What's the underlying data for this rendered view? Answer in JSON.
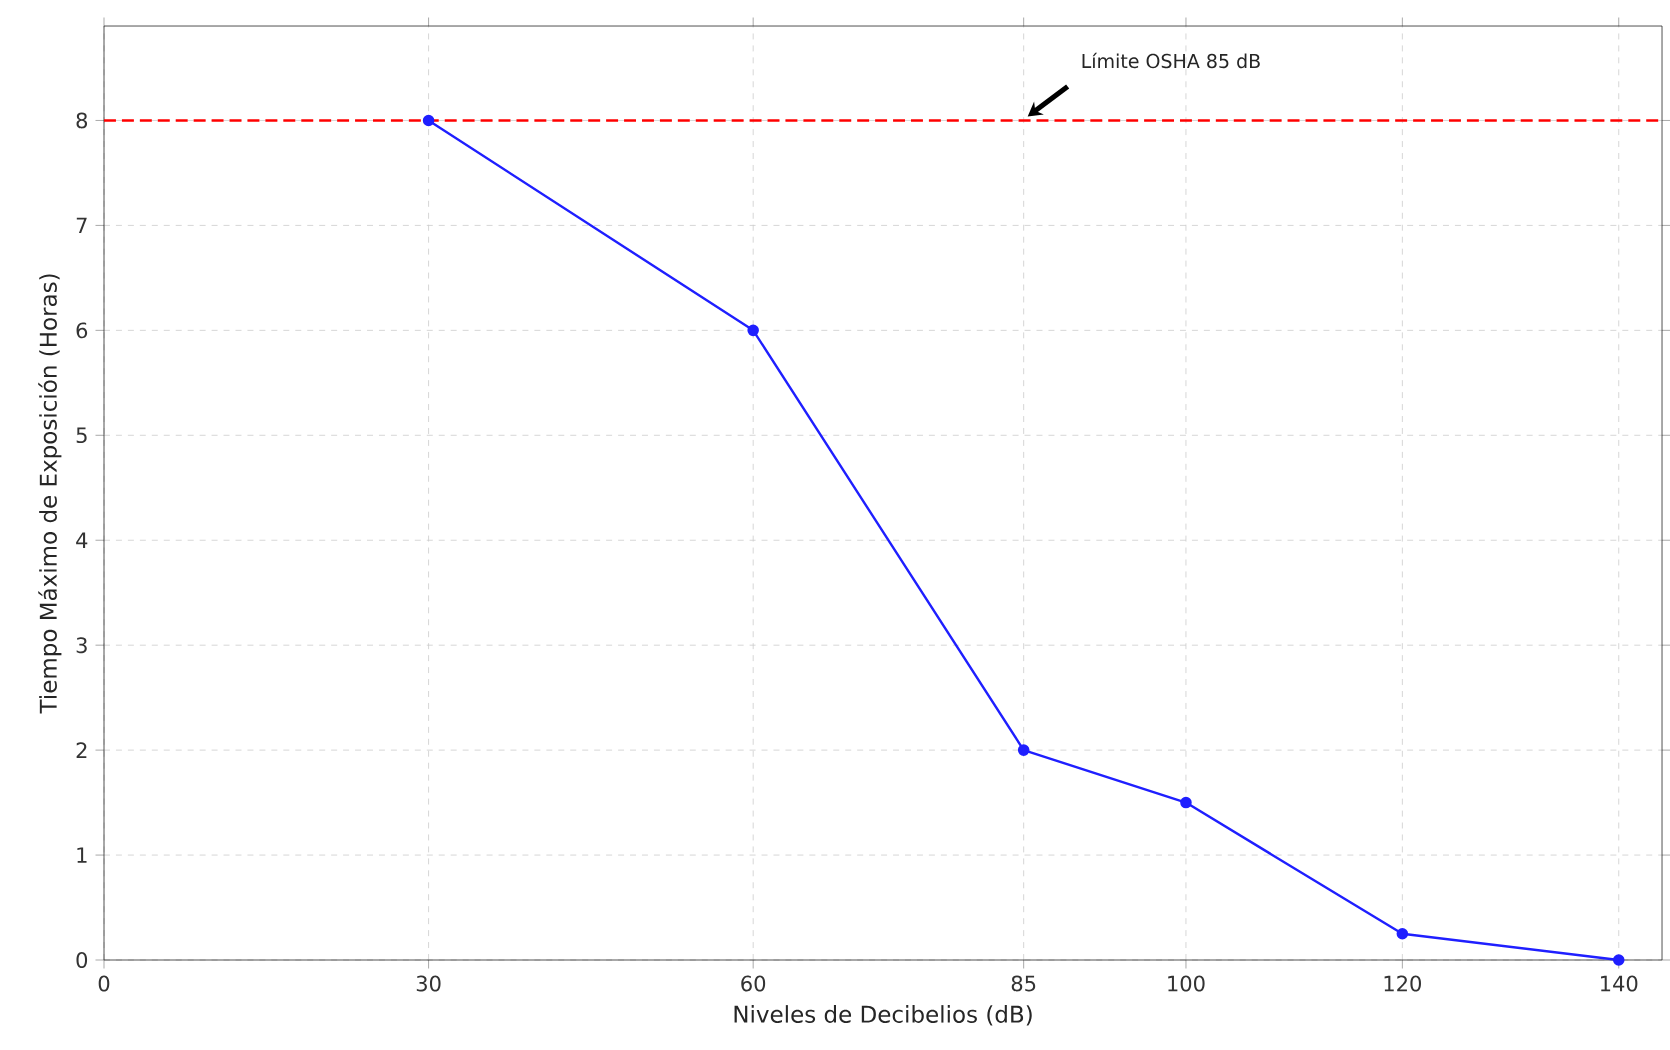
{
  "chart_data": {
    "type": "line",
    "xlabel": "Niveles de Decibelios (dB)",
    "ylabel": "Tiempo Máximo de Exposición (Horas)",
    "x": [
      30,
      60,
      85,
      100,
      120,
      140
    ],
    "series": [
      {
        "color": "#1f1fff",
        "values": [
          8,
          6,
          2,
          1.5,
          0.25,
          0
        ]
      }
    ],
    "xlim": [
      0,
      144
    ],
    "ylim": [
      0,
      8.9
    ],
    "xticks": [
      0,
      30,
      60,
      85,
      100,
      120,
      140
    ],
    "yticks": [
      0,
      1,
      2,
      3,
      4,
      5,
      6,
      7,
      8
    ],
    "ref_lines": [
      {
        "axis": "y",
        "value": 8,
        "color": "#ff0000",
        "line_style": "dashed"
      }
    ],
    "annotations": [
      {
        "text": "Límite OSHA 85 dB",
        "x": 85,
        "y": 8
      }
    ],
    "grid": true,
    "marker": "circle",
    "line_style": "solid"
  }
}
